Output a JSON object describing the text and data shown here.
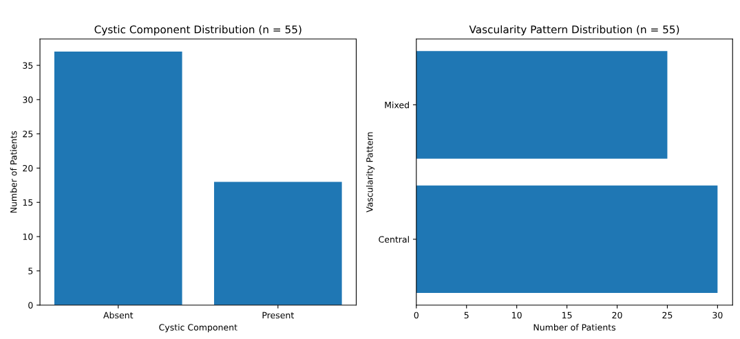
{
  "chart_data": [
    {
      "type": "bar",
      "title": "Cystic Component Distribution (n = 55)",
      "xlabel": "Cystic Component",
      "ylabel": "Number of Patients",
      "categories": [
        "Absent",
        "Present"
      ],
      "values": [
        37,
        18
      ],
      "color": "#1f77b4",
      "ylim": [
        0,
        38.85
      ],
      "yticks": [
        0,
        5,
        10,
        15,
        20,
        25,
        30,
        35
      ]
    },
    {
      "type": "bar",
      "orientation": "horizontal",
      "title": "Vascularity Pattern Distribution (n = 55)",
      "xlabel": "Number of Patients",
      "ylabel": "Vascularity Pattern",
      "categories": [
        "Mixed",
        "Central"
      ],
      "values": [
        25,
        30
      ],
      "color": "#1f77b4",
      "xlim": [
        0,
        31.5
      ],
      "xticks": [
        0,
        5,
        10,
        15,
        20,
        25,
        30
      ]
    }
  ]
}
